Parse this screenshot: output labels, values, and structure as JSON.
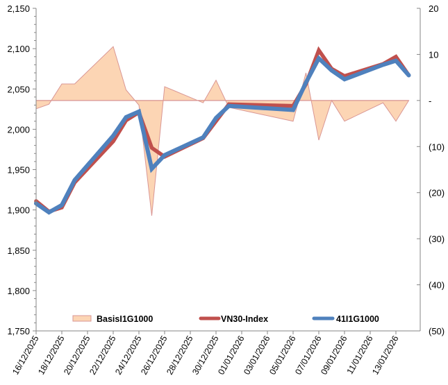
{
  "chart_data": {
    "type": "line",
    "title": "",
    "xlabel": "",
    "ylabel": "",
    "y2label": "",
    "ylim": [
      1750,
      2150
    ],
    "y_ticks": [
      1750,
      1800,
      1850,
      1900,
      1950,
      2000,
      2050,
      2100,
      2150
    ],
    "y_tick_labels": [
      "1,750",
      "1,800",
      "1,850",
      "1,900",
      "1,950",
      "2,000",
      "2,050",
      "2,100",
      "2,150"
    ],
    "y2lim": [
      -50,
      20
    ],
    "y2_ticks": [
      -50,
      -40,
      -30,
      -20,
      -10,
      0,
      10,
      20
    ],
    "y2_tick_labels": [
      "(50)",
      "(40)",
      "(30)",
      "(20)",
      "(10)",
      "-",
      "10",
      "20"
    ],
    "x_tick_labels": [
      "16/12/2025",
      "18/12/2025",
      "20/12/2025",
      "22/12/2025",
      "24/12/2025",
      "26/12/2025",
      "28/12/2025",
      "30/12/2025",
      "01/01/2026",
      "03/01/2026",
      "05/01/2026",
      "07/01/2026",
      "09/01/2026",
      "11/01/2026",
      "13/01/2026"
    ],
    "x_day_offsets": [
      0,
      1,
      2,
      3,
      6,
      7,
      8,
      9,
      10,
      13,
      14,
      15,
      20,
      21,
      22,
      23,
      24,
      27,
      28,
      29
    ],
    "x": [
      "16/12/2025",
      "17/12/2025",
      "18/12/2025",
      "19/12/2025",
      "22/12/2025",
      "23/12/2025",
      "24/12/2025",
      "25/12/2025",
      "26/12/2025",
      "29/12/2025",
      "30/12/2025",
      "31/12/2025",
      "05/01/2026",
      "06/01/2026",
      "07/01/2026",
      "08/01/2026",
      "09/01/2026",
      "12/01/2026",
      "13/01/2026",
      "14/01/2026"
    ],
    "legend_position": "bottom",
    "grid": false,
    "series": [
      {
        "name": "BasisI1G1000",
        "type": "area",
        "axis": "right",
        "color": "#fcd5b4",
        "edge_color": "#d99694",
        "values": [
          -1.8,
          -0.8,
          3.6,
          3.6,
          11.7,
          2.3,
          -1.0,
          -25.0,
          3.0,
          -0.5,
          4.4,
          -1.5,
          -4.5,
          6.0,
          -8.6,
          0.0,
          -4.5,
          -0.5,
          -4.5,
          0.0
        ]
      },
      {
        "name": "VN30-Index",
        "type": "line",
        "axis": "left",
        "color": "#c0504d",
        "values": [
          1911,
          1898,
          1903,
          1934,
          1985,
          2011,
          2021,
          1977,
          1966,
          1989,
          2010,
          2031,
          2029,
          2056,
          2098,
          2075,
          2066,
          2081,
          2090,
          2067
        ]
      },
      {
        "name": "41I1G1000",
        "type": "line",
        "axis": "left",
        "color": "#4f81bd",
        "values": [
          1908,
          1897,
          1906,
          1937,
          1992,
          2015,
          2022,
          1951,
          1968,
          1990,
          2014,
          2029,
          2024,
          2058,
          2088,
          2073,
          2062,
          2080,
          2085,
          2067
        ]
      }
    ]
  }
}
